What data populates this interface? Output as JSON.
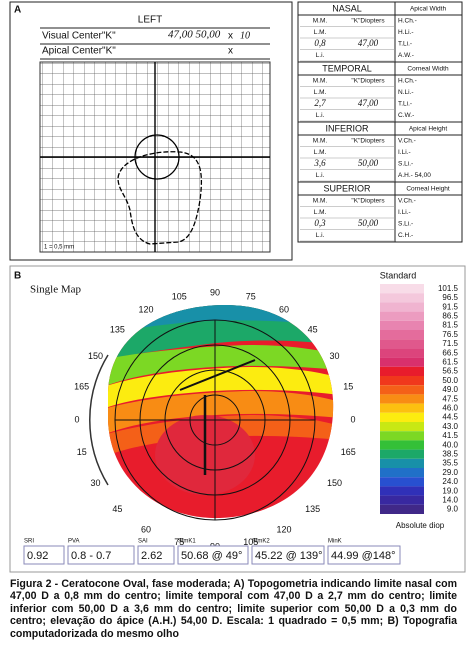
{
  "panel_a": {
    "label": "A",
    "form": {
      "eye": "LEFT",
      "visual_center": "Visual Center\"K\"",
      "visual_value": "47,00  50,00",
      "visual_x": "x",
      "visual_x_value": "10",
      "apical_center": "Apical Center\"K\"",
      "apical_x": "x",
      "scale_note": "1 = 0,5 mm"
    },
    "table": [
      {
        "title": "NASAL",
        "header": "Apical Width",
        "rows": [
          [
            "M.M.",
            "\"K\"Diopters",
            "H.Ch.-"
          ],
          [
            "L.M.",
            "H.Li.-"
          ],
          [
            "0,8",
            "47,00",
            "T.Li.-"
          ],
          [
            "L.i.",
            "A.W.-"
          ]
        ]
      },
      {
        "title": "TEMPORAL",
        "header": "Corneal Width",
        "rows": [
          [
            "M.M.",
            "\"K\"Diopters",
            "H.Ch.-"
          ],
          [
            "L.M.",
            "N.Li.-"
          ],
          [
            "2,7",
            "47,00",
            "T.Li.-"
          ],
          [
            "L.i.",
            "C.W.-"
          ]
        ]
      },
      {
        "title": "INFERIOR",
        "header": "Apical Height",
        "rows": [
          [
            "M.M.",
            "\"K\"Diopters",
            "V.Ch.-"
          ],
          [
            "L.M.",
            "I.Li.-"
          ],
          [
            "3,6",
            "50,00",
            "S.Li.-"
          ],
          [
            "L.i.",
            "A.H.- 54,00"
          ]
        ]
      },
      {
        "title": "SUPERIOR",
        "header": "Corneal Height",
        "rows": [
          [
            "M.M.",
            "\"K\"Diopters",
            "V.Ch.-"
          ],
          [
            "L.M.",
            "I.Li.-"
          ],
          [
            "0,3",
            "50,00",
            "S.Li.-"
          ],
          [
            "L.i.",
            "C.H.-"
          ]
        ]
      }
    ]
  },
  "panel_b": {
    "label": "B",
    "map_title": "Single Map",
    "angle_labels": [
      0,
      15,
      30,
      45,
      60,
      75,
      90,
      105,
      120,
      135,
      150,
      165,
      0,
      15,
      30,
      45,
      60,
      75,
      90,
      105,
      120,
      135,
      150,
      165
    ],
    "scale": {
      "title": "Standard",
      "unit": "Absolute diop",
      "values": [
        "101.5",
        "96.5",
        "91.5",
        "86.5",
        "81.5",
        "76.5",
        "71.5",
        "66.5",
        "61.5",
        "56.5",
        "50.0",
        "49.0",
        "47.5",
        "46.0",
        "44.5",
        "43.0",
        "41.5",
        "40.0",
        "38.5",
        "35.5",
        "29.0",
        "24.0",
        "19.0",
        "14.0",
        "9.0"
      ],
      "colors": [
        "#f8dce8",
        "#f4c8dc",
        "#f0b4d0",
        "#ec9cc0",
        "#e884b0",
        "#e46c9c",
        "#e0588c",
        "#dc447c",
        "#d8306c",
        "#e81c2c",
        "#f0381c",
        "#f46018",
        "#f88c14",
        "#fcc010",
        "#fcec10",
        "#c8e814",
        "#7cd824",
        "#34c038",
        "#1ca868",
        "#1890a8",
        "#2070c8",
        "#2850d0",
        "#3030b8",
        "#3828a0",
        "#402888"
      ]
    },
    "indices": [
      {
        "name": "SRI",
        "value": "0.92"
      },
      {
        "name": "PVA",
        "value": "0.8 - 0.7"
      },
      {
        "name": "SAI",
        "value": "2.62"
      },
      {
        "name": "SimK1",
        "value": "50.68 @ 49°"
      },
      {
        "name": "SimK2",
        "value": "45.22 @ 139°"
      },
      {
        "name": "MinK",
        "value": "44.99 @148°"
      }
    ]
  },
  "caption": "Figura 2 - Ceratocone Oval, fase moderada; A) Topogometria indicando limite nasal com 47,00 D a 0,8 mm do centro; limite temporal com 47,00 D a 2,7 mm do centro; limite inferior com 50,00 D a 3,6 mm do centro; limite superior com 50,00 D a 0,3 mm do centro; elevação do ápice (A.H.) 54,00 D. Escala: 1 quadrado = 0,5 mm; B) Topografia computadorizada do mesmo olho"
}
